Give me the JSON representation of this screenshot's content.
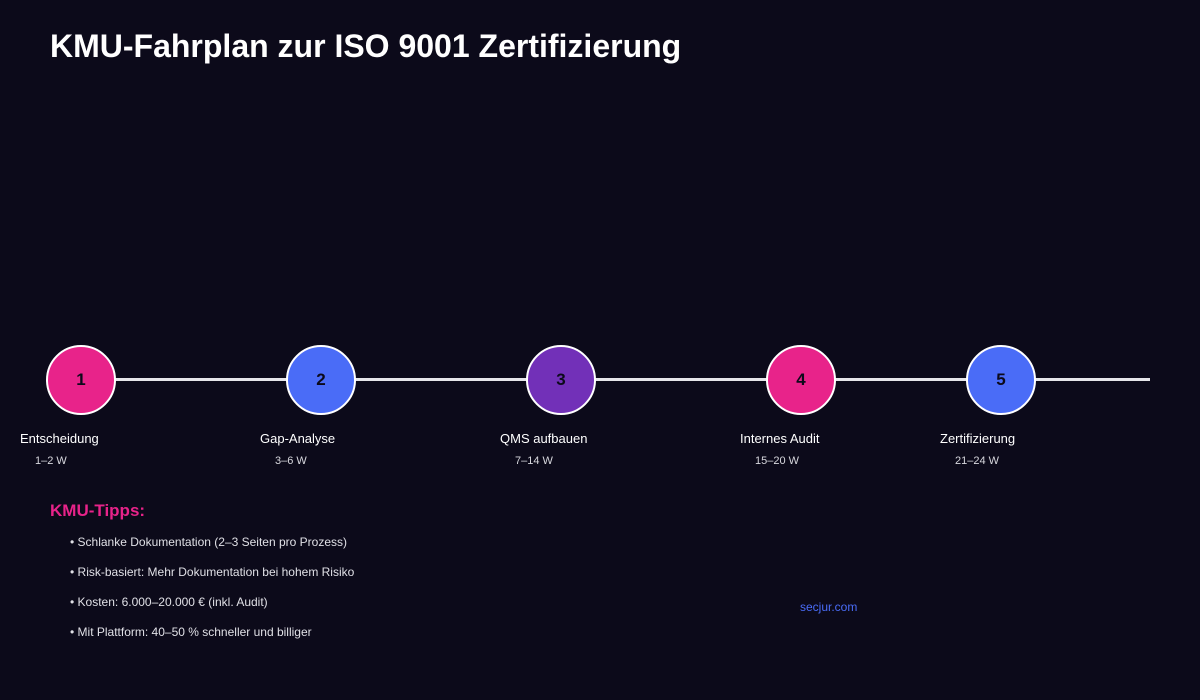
{
  "title": "KMU-Fahrplan zur ISO 9001 Zertifizierung",
  "timeline": {
    "steps": [
      {
        "number": "1",
        "label": "Entscheidung",
        "duration": "1–2 W",
        "color": "#e8238a"
      },
      {
        "number": "2",
        "label": "Gap-Analyse",
        "duration": "3–6 W",
        "color": "#4a6cf7"
      },
      {
        "number": "3",
        "label": "QMS aufbauen",
        "duration": "7–14 W",
        "color": "#7230b8"
      },
      {
        "number": "4",
        "label": "Internes Audit",
        "duration": "15–20 W",
        "color": "#e8238a"
      },
      {
        "number": "5",
        "label": "Zertifizierung",
        "duration": "21–24 W",
        "color": "#4a6cf7"
      }
    ],
    "line_color": "#e6e6ea"
  },
  "tips": {
    "heading": "KMU-Tipps:",
    "items": [
      "• Schlanke Dokumentation (2–3 Seiten pro Prozess)",
      "• Risk-basiert: Mehr Dokumentation bei hohem Risiko",
      "• Kosten: 6.000–20.000 € (inkl. Audit)",
      "• Mit Plattform: 40–50 % schneller und billiger"
    ],
    "heading_color": "#e8238a"
  },
  "source": "secjur.com",
  "colors": {
    "background": "#0c0a1a",
    "accent_pink": "#e8238a",
    "accent_blue": "#4a6cf7",
    "accent_purple": "#7230b8"
  }
}
